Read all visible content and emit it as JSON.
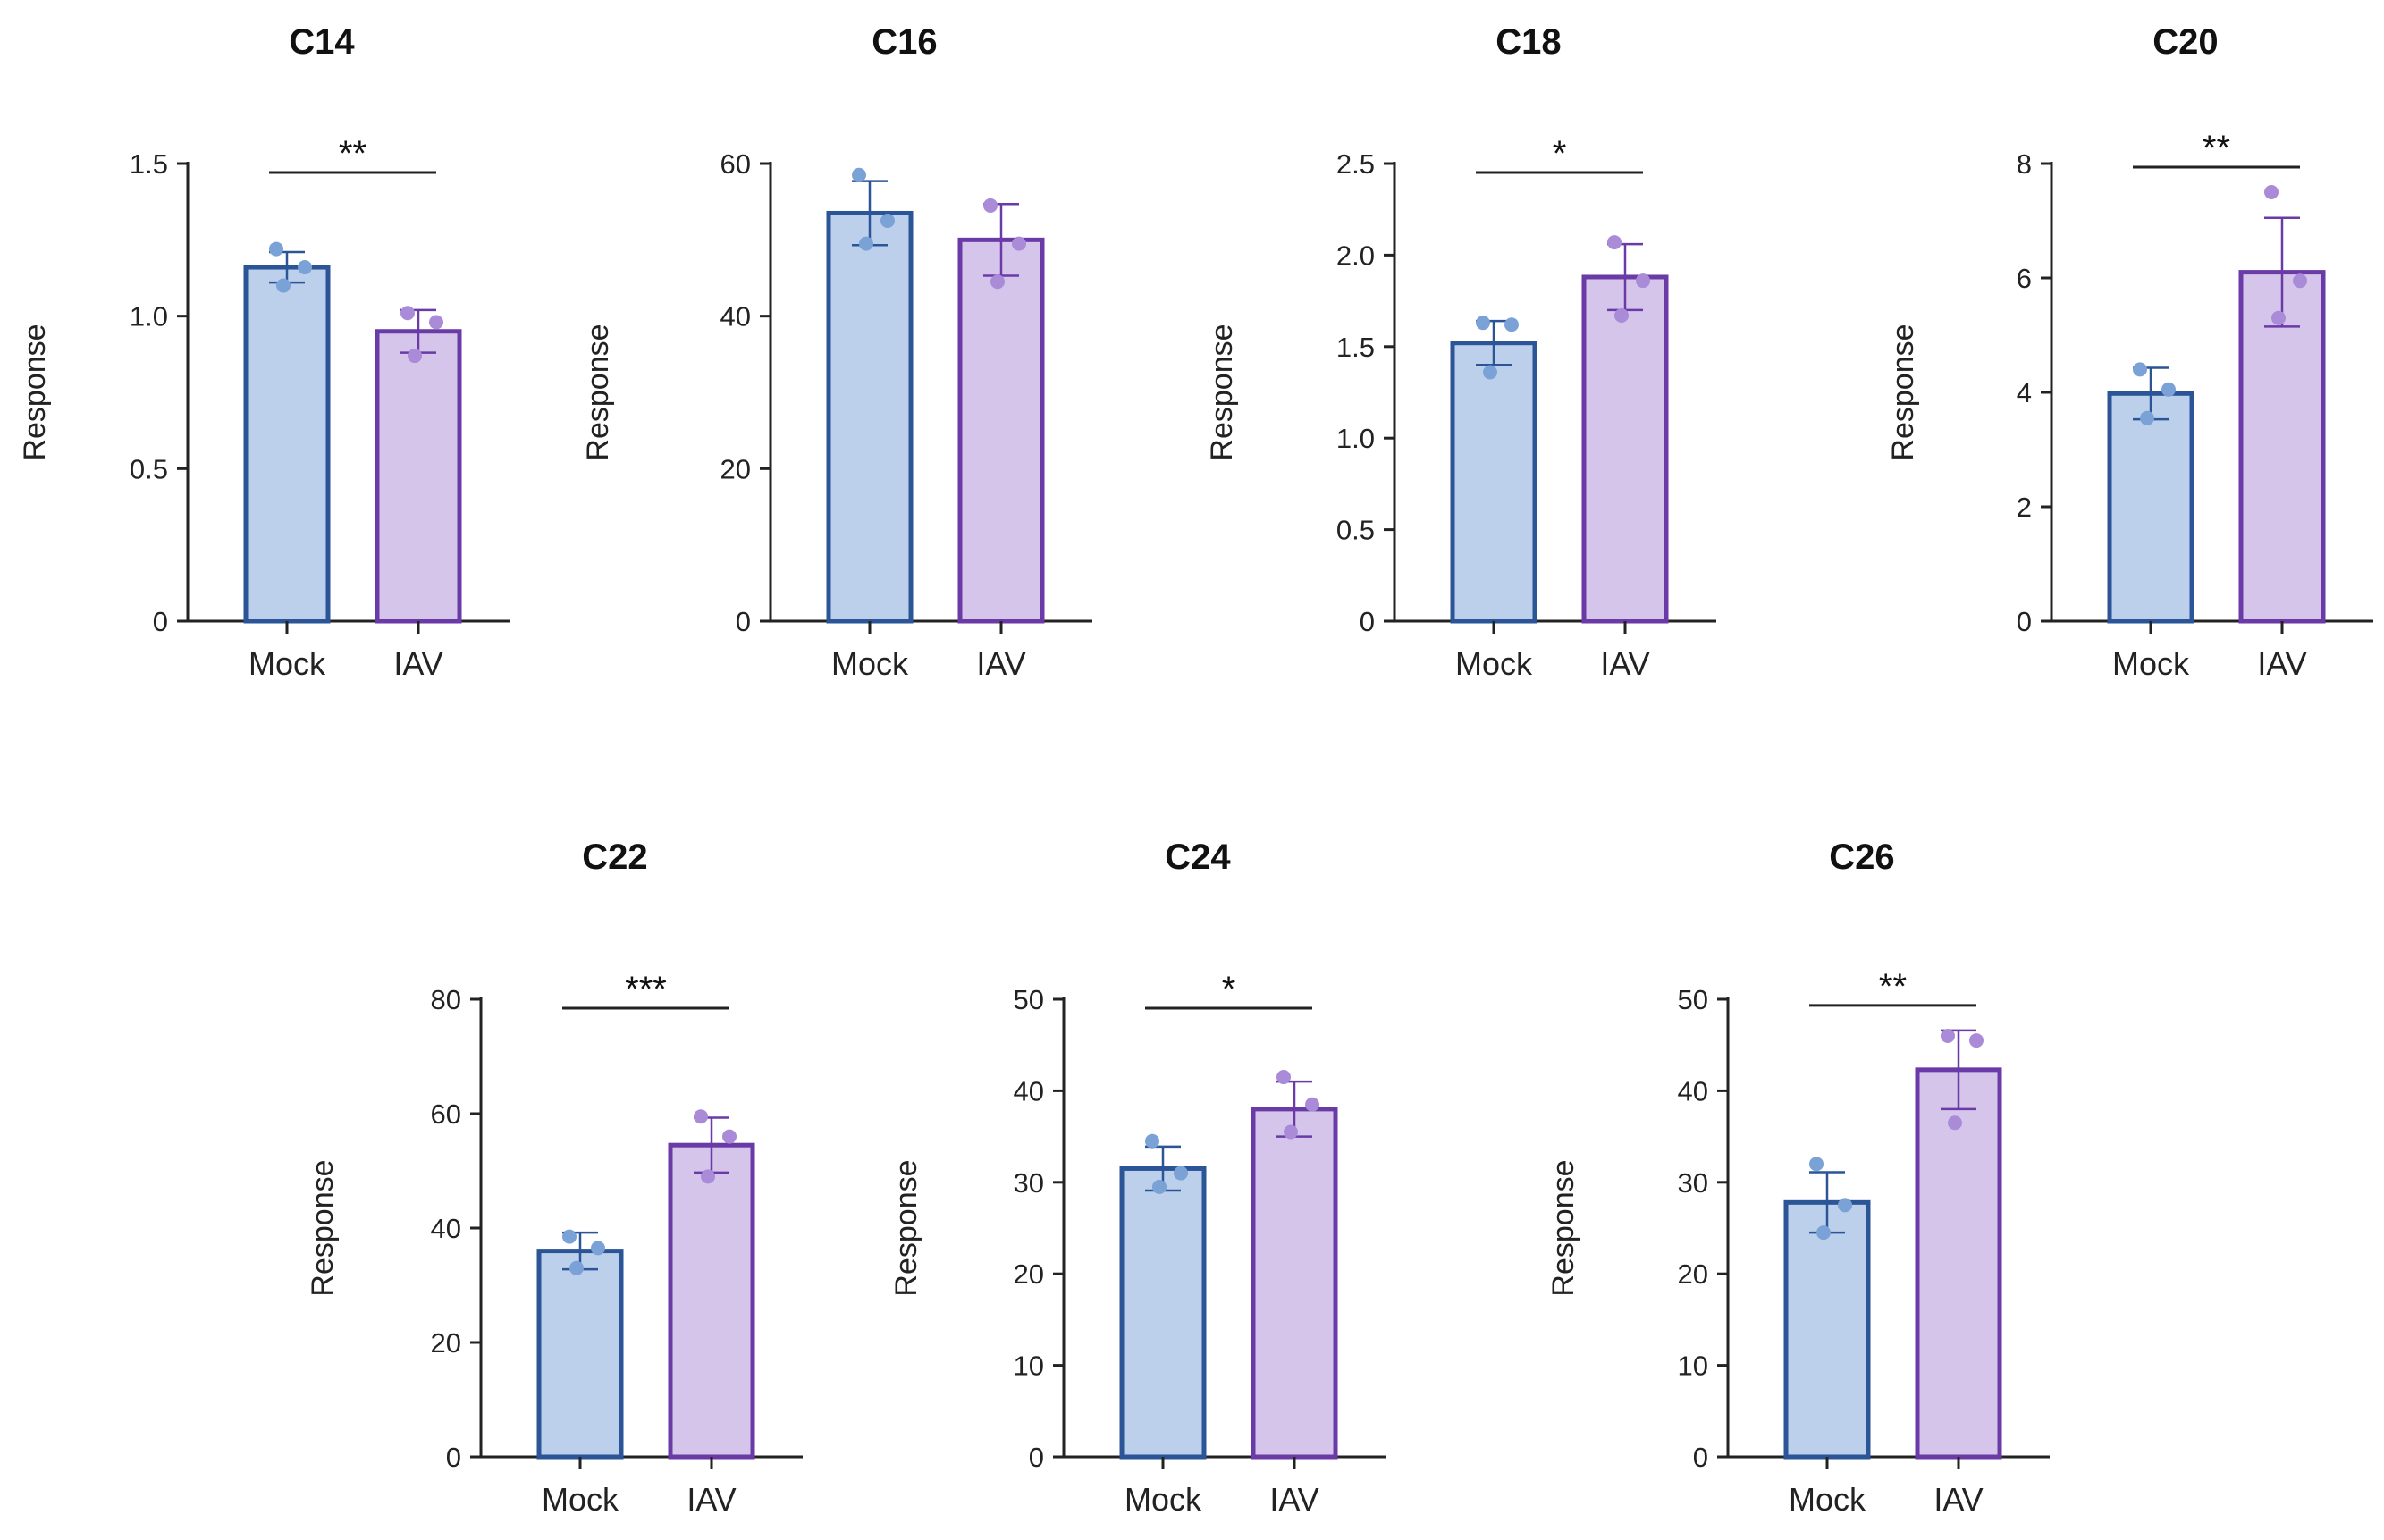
{
  "colors": {
    "mock_fill": "#bdd0eb",
    "mock_edge": "#2b5597",
    "mock_point": "#7aa2d6",
    "iav_fill": "#d6c5ea",
    "iav_edge": "#6a3aa6",
    "iav_point": "#a98bd8",
    "axis": "#222222"
  },
  "chart_data": [
    {
      "type": "bar",
      "title": "C14",
      "ylabel": "Response",
      "categories": [
        "Mock",
        "IAV"
      ],
      "values": [
        1.16,
        0.95
      ],
      "error": [
        0.05,
        0.07
      ],
      "points": [
        [
          1.22,
          1.16,
          1.1
        ],
        [
          1.01,
          0.98,
          0.87
        ]
      ],
      "ylim": [
        0,
        1.5
      ],
      "yticks": [
        0,
        0.5,
        1.0,
        1.5
      ],
      "ytick_labels": [
        "0",
        "0.5",
        "1.0",
        "1.5"
      ],
      "significance": "**"
    },
    {
      "type": "bar",
      "title": "C16",
      "ylabel": "Response",
      "categories": [
        "Mock",
        "IAV"
      ],
      "values": [
        53.5,
        50
      ],
      "error": [
        4.2,
        4.7
      ],
      "points": [
        [
          58.5,
          52.5,
          49.5
        ],
        [
          54.5,
          49.5,
          44.5
        ]
      ],
      "ylim": [
        0,
        60
      ],
      "yticks": [
        0,
        20,
        40,
        60
      ],
      "ytick_labels": [
        "0",
        "20",
        "40",
        "60"
      ],
      "significance": ""
    },
    {
      "type": "bar",
      "title": "C18",
      "ylabel": "Response",
      "categories": [
        "Mock",
        "IAV"
      ],
      "values": [
        1.52,
        1.88
      ],
      "error": [
        0.12,
        0.18
      ],
      "points": [
        [
          1.63,
          1.62,
          1.36
        ],
        [
          2.07,
          1.86,
          1.67
        ]
      ],
      "ylim": [
        0,
        2.5
      ],
      "yticks": [
        0,
        0.5,
        1.0,
        1.5,
        2.0,
        2.5
      ],
      "ytick_labels": [
        "0",
        "0.5",
        "1.0",
        "1.5",
        "2.0",
        "2.5"
      ],
      "significance": "*"
    },
    {
      "type": "bar",
      "title": "C20",
      "ylabel": "Response",
      "categories": [
        "Mock",
        "IAV"
      ],
      "values": [
        3.98,
        6.1
      ],
      "error": [
        0.45,
        0.95
      ],
      "points": [
        [
          4.4,
          4.05,
          3.55
        ],
        [
          7.5,
          5.95,
          5.3
        ]
      ],
      "ylim": [
        0,
        8
      ],
      "yticks": [
        0,
        2,
        4,
        6,
        8
      ],
      "ytick_labels": [
        "0",
        "2",
        "4",
        "6",
        "8"
      ],
      "significance": "**"
    },
    {
      "type": "bar",
      "title": "C22",
      "ylabel": "Response",
      "categories": [
        "Mock",
        "IAV"
      ],
      "values": [
        36,
        54.5
      ],
      "error": [
        3.2,
        4.8
      ],
      "points": [
        [
          38.5,
          36.5,
          33
        ],
        [
          59.5,
          56,
          49
        ]
      ],
      "ylim": [
        0,
        80
      ],
      "yticks": [
        0,
        20,
        40,
        60,
        80
      ],
      "ytick_labels": [
        "0",
        "20",
        "40",
        "60",
        "80"
      ],
      "significance": "***"
    },
    {
      "type": "bar",
      "title": "C24",
      "ylabel": "Response",
      "categories": [
        "Mock",
        "IAV"
      ],
      "values": [
        31.5,
        38
      ],
      "error": [
        2.4,
        3.0
      ],
      "points": [
        [
          34.5,
          31,
          29.5
        ],
        [
          41.5,
          38.5,
          35.5
        ]
      ],
      "ylim": [
        0,
        50
      ],
      "yticks": [
        0,
        10,
        20,
        30,
        40,
        50
      ],
      "ytick_labels": [
        "0",
        "10",
        "20",
        "30",
        "40",
        "50"
      ],
      "significance": "*"
    },
    {
      "type": "bar",
      "title": "C26",
      "ylabel": "Response",
      "categories": [
        "Mock",
        "IAV"
      ],
      "values": [
        27.8,
        42.3
      ],
      "error": [
        3.3,
        4.3
      ],
      "points": [
        [
          32,
          27.5,
          24.5
        ],
        [
          46,
          45.5,
          36.5
        ]
      ],
      "ylim": [
        0,
        50
      ],
      "yticks": [
        0,
        10,
        20,
        30,
        40,
        50
      ],
      "ytick_labels": [
        "0",
        "10",
        "20",
        "30",
        "40",
        "50"
      ],
      "significance": "**"
    }
  ]
}
